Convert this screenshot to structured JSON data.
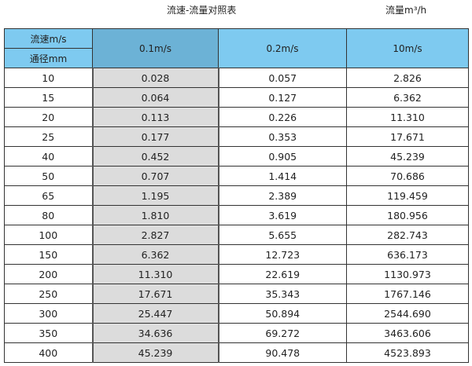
{
  "title": "流速-流量对照表",
  "unit_label": "流量m³/h",
  "header": {
    "velocity_label": "流速m/s",
    "diameter_label": "通径mm",
    "columns": [
      "0.1m/s",
      "0.2m/s",
      "10m/s"
    ]
  },
  "rows": [
    [
      "10",
      "0.028",
      "0.057",
      "2.826"
    ],
    [
      "15",
      "0.064",
      "0.127",
      "6.362"
    ],
    [
      "20",
      "0.113",
      "0.226",
      "11.310"
    ],
    [
      "25",
      "0.177",
      "0.353",
      "17.671"
    ],
    [
      "40",
      "0.452",
      "0.905",
      "45.239"
    ],
    [
      "50",
      "0.707",
      "1.414",
      "70.686"
    ],
    [
      "65",
      "1.195",
      "2.389",
      "119.459"
    ],
    [
      "80",
      "1.810",
      "3.619",
      "180.956"
    ],
    [
      "100",
      "2.827",
      "5.655",
      "282.743"
    ],
    [
      "150",
      "6.362",
      "12.723",
      "636.173"
    ],
    [
      "200",
      "11.310",
      "22.619",
      "1130.973"
    ],
    [
      "250",
      "17.671",
      "35.343",
      "1767.146"
    ],
    [
      "300",
      "25.447",
      "50.894",
      "2544.690"
    ],
    [
      "350",
      "34.636",
      "69.272",
      "3463.606"
    ],
    [
      "400",
      "45.239",
      "90.478",
      "4523.893"
    ]
  ]
}
